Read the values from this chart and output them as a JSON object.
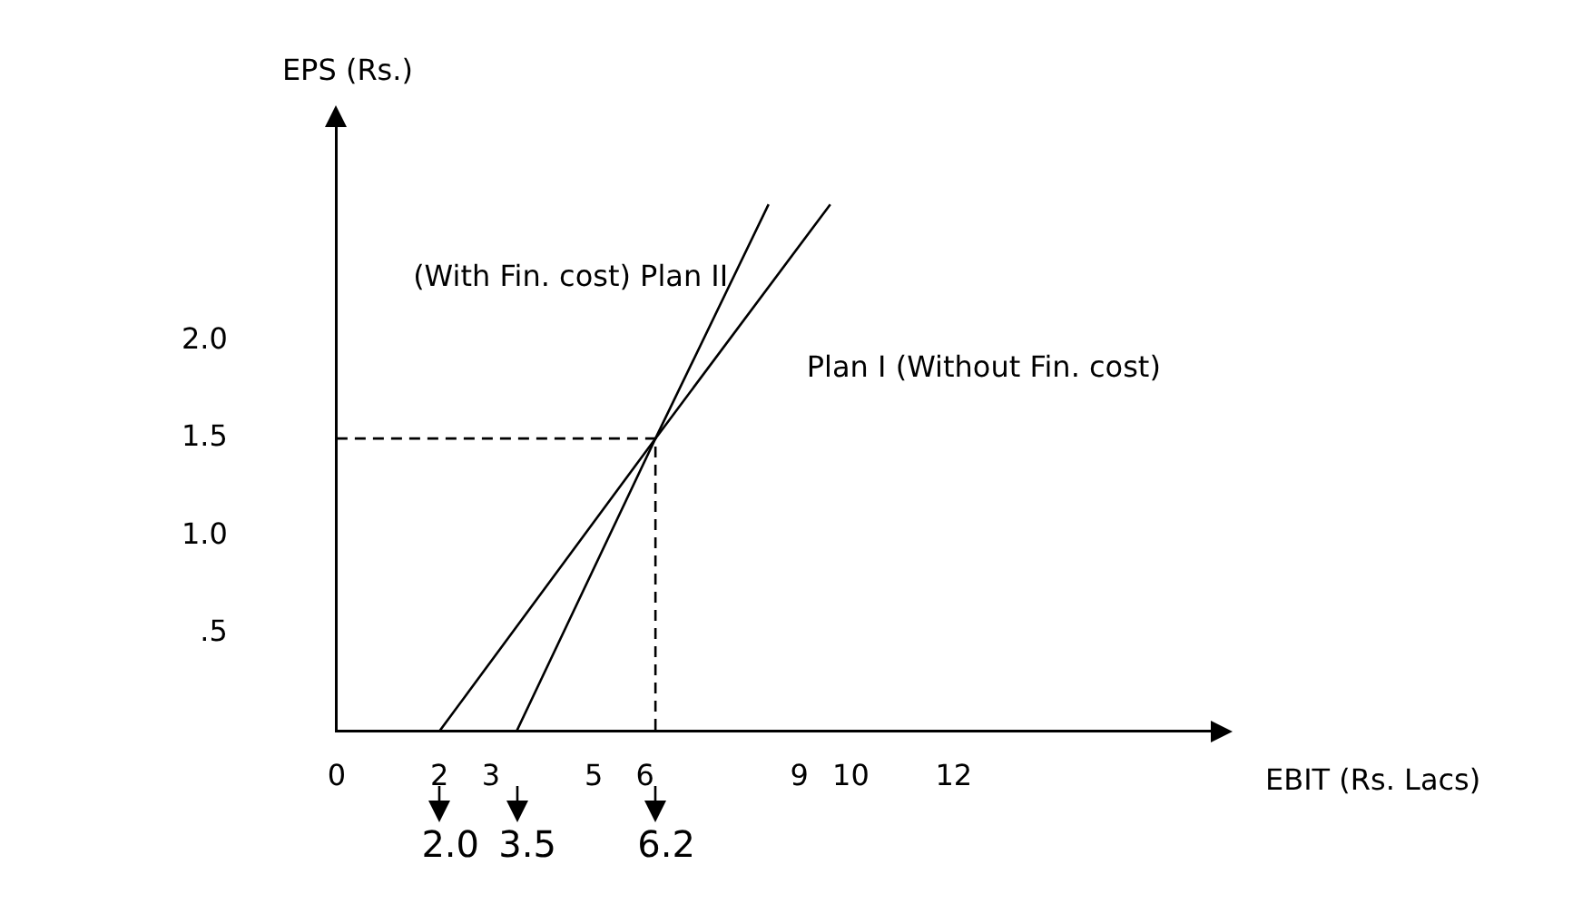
{
  "chart_data": {
    "type": "line",
    "xlabel": "EBIT (Rs. Lacs)",
    "ylabel": "EPS (Rs.)",
    "xlim": [
      0,
      17
    ],
    "xticks": [
      0,
      2,
      3,
      5,
      6,
      9,
      10,
      12
    ],
    "ylim": [
      0,
      3.1
    ],
    "yticks": [
      {
        "value": 0.5,
        "label": ".5"
      },
      {
        "value": 1,
        "label": "1.0"
      },
      {
        "value": 1.5,
        "label": "1.5"
      },
      {
        "value": 2,
        "label": "2.0"
      }
    ],
    "grid": false,
    "legend": false,
    "marker": "none",
    "series": [
      {
        "name": "Plan I (Without Fin. cost)",
        "color": "#000000",
        "x": [
          2,
          6.2,
          9.6
        ],
        "values": [
          0,
          1.5,
          2.7
        ],
        "line_style": "solid"
      },
      {
        "name": "(With Fin. cost) Plan II",
        "color": "#000000",
        "x": [
          3.5,
          6.2,
          8.4
        ],
        "values": [
          0,
          1.5,
          2.7
        ],
        "line_style": "solid"
      },
      {
        "color": "#000000",
        "x": [
          0,
          6.2,
          6.2
        ],
        "values": [
          1.5,
          1.5,
          0
        ],
        "line_style": "dashed"
      }
    ],
    "annotations": [
      {
        "text": "2.0",
        "x": 2,
        "y": 0
      },
      {
        "text": "3.5",
        "x": 3.5,
        "y": 0
      },
      {
        "text": "6.2",
        "x": 6.2,
        "y": 0
      }
    ]
  }
}
